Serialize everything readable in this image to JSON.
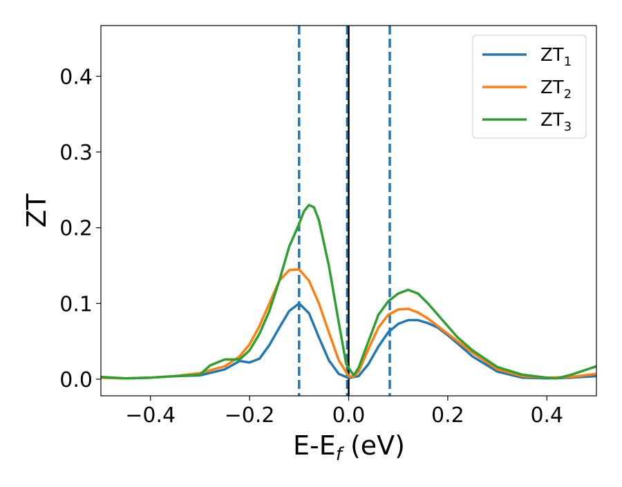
{
  "chart_data": {
    "type": "line",
    "title": "",
    "xlabel": {
      "main": "E-E",
      "sub": "f",
      "suffix": " (eV)"
    },
    "ylabel": "ZT",
    "xlim": [
      -0.5,
      0.5
    ],
    "ylim": [
      -0.022,
      0.467
    ],
    "xticks": [
      -0.4,
      -0.2,
      0.0,
      0.2,
      0.4
    ],
    "xtick_labels": [
      "−0.4",
      "−0.2",
      "0.0",
      "0.2",
      "0.4"
    ],
    "yticks": [
      0.0,
      0.1,
      0.2,
      0.3,
      0.4
    ],
    "ytick_labels": [
      "0.0",
      "0.1",
      "0.2",
      "0.3",
      "0.4"
    ],
    "grid": false,
    "legend_position": "top-right",
    "vlines": [
      {
        "x": -0.1,
        "style": "dashed",
        "color": "#1f77b4"
      },
      {
        "x": -0.003,
        "style": "dashed",
        "color": "#1f77b4"
      },
      {
        "x": 0.0,
        "style": "solid",
        "color": "#000000"
      },
      {
        "x": 0.083,
        "style": "dashed",
        "color": "#1f77b4"
      }
    ],
    "series": [
      {
        "name": "ZT",
        "sub": "1",
        "color": "#1f77b4",
        "x": [
          -0.5,
          -0.45,
          -0.4,
          -0.35,
          -0.3,
          -0.25,
          -0.22,
          -0.2,
          -0.18,
          -0.16,
          -0.14,
          -0.12,
          -0.1,
          -0.08,
          -0.06,
          -0.04,
          -0.02,
          0.0,
          0.02,
          0.04,
          0.06,
          0.08,
          0.1,
          0.12,
          0.14,
          0.16,
          0.18,
          0.2,
          0.22,
          0.25,
          0.3,
          0.35,
          0.4,
          0.45,
          0.5
        ],
        "values": [
          0.002,
          0.001,
          0.002,
          0.004,
          0.005,
          0.013,
          0.024,
          0.022,
          0.027,
          0.045,
          0.068,
          0.09,
          0.1,
          0.087,
          0.055,
          0.025,
          0.007,
          0.0015,
          0.004,
          0.02,
          0.043,
          0.062,
          0.073,
          0.078,
          0.078,
          0.074,
          0.068,
          0.058,
          0.047,
          0.03,
          0.01,
          0.002,
          0.001,
          0.002,
          0.004
        ]
      },
      {
        "name": "ZT",
        "sub": "2",
        "color": "#ff7f0e",
        "x": [
          -0.5,
          -0.45,
          -0.4,
          -0.35,
          -0.3,
          -0.25,
          -0.22,
          -0.2,
          -0.18,
          -0.16,
          -0.14,
          -0.12,
          -0.1,
          -0.08,
          -0.06,
          -0.04,
          -0.02,
          0.0,
          0.01,
          0.02,
          0.04,
          0.06,
          0.08,
          0.1,
          0.12,
          0.14,
          0.16,
          0.18,
          0.2,
          0.22,
          0.25,
          0.3,
          0.35,
          0.4,
          0.45,
          0.5
        ],
        "values": [
          0.002,
          0.001,
          0.002,
          0.004,
          0.008,
          0.017,
          0.03,
          0.046,
          0.07,
          0.1,
          0.13,
          0.144,
          0.145,
          0.13,
          0.1,
          0.062,
          0.025,
          0.004,
          0.003,
          0.01,
          0.04,
          0.068,
          0.085,
          0.092,
          0.093,
          0.088,
          0.08,
          0.07,
          0.06,
          0.05,
          0.035,
          0.013,
          0.004,
          0.002,
          0.003,
          0.007
        ]
      },
      {
        "name": "ZT",
        "sub": "3",
        "color": "#2ca02c",
        "x": [
          -0.5,
          -0.45,
          -0.4,
          -0.35,
          -0.3,
          -0.28,
          -0.25,
          -0.22,
          -0.2,
          -0.18,
          -0.16,
          -0.14,
          -0.12,
          -0.1,
          -0.09,
          -0.08,
          -0.07,
          -0.06,
          -0.04,
          -0.02,
          -0.005,
          0.0,
          0.01,
          0.02,
          0.04,
          0.06,
          0.08,
          0.1,
          0.12,
          0.14,
          0.16,
          0.18,
          0.2,
          0.22,
          0.25,
          0.3,
          0.35,
          0.4,
          0.42,
          0.45,
          0.5
        ],
        "values": [
          0.003,
          0.001,
          0.002,
          0.004,
          0.006,
          0.018,
          0.026,
          0.026,
          0.038,
          0.06,
          0.09,
          0.13,
          0.175,
          0.205,
          0.222,
          0.23,
          0.227,
          0.21,
          0.15,
          0.075,
          0.02,
          0.015,
          0.005,
          0.015,
          0.05,
          0.085,
          0.103,
          0.113,
          0.118,
          0.113,
          0.1,
          0.085,
          0.07,
          0.055,
          0.038,
          0.016,
          0.006,
          0.002,
          0.001,
          0.006,
          0.017
        ]
      }
    ]
  }
}
